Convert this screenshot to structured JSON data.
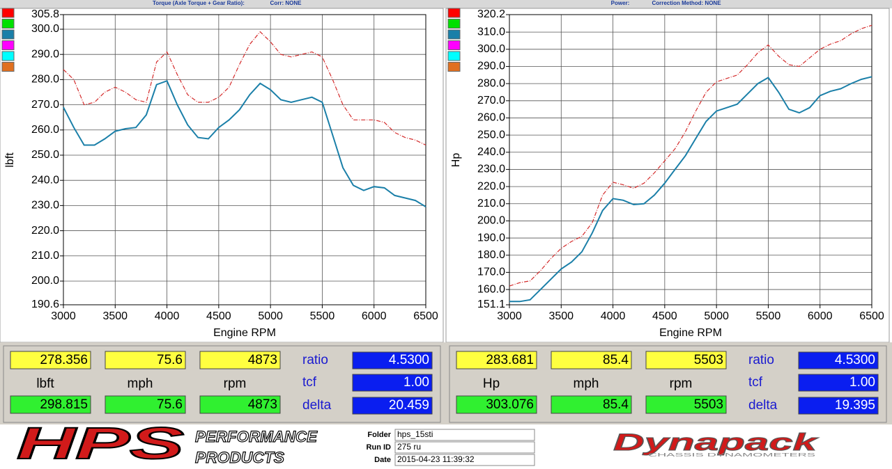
{
  "chart_data": [
    {
      "type": "line",
      "title": "Torque (Axle Torque + Gear Ratio):",
      "subtitle": "Corr: NONE",
      "x_label": "Engine RPM",
      "y_label": "lbft",
      "x": [
        3000,
        3100,
        3200,
        3300,
        3400,
        3500,
        3600,
        3700,
        3800,
        3900,
        4000,
        4100,
        4200,
        4300,
        4400,
        4500,
        4600,
        4700,
        4800,
        4900,
        5000,
        5100,
        5200,
        5300,
        5400,
        5500,
        5600,
        5700,
        5800,
        5900,
        6000,
        6100,
        6200,
        6300,
        6400,
        6500
      ],
      "series": [
        {
          "color": "#1a7fa8",
          "line_style": "solid",
          "values": [
            269,
            261,
            254,
            254,
            256.5,
            259.5,
            260.5,
            261,
            266,
            278,
            279.5,
            270,
            262,
            257,
            256.5,
            261,
            264,
            268,
            274,
            278.5,
            276,
            272,
            271,
            272,
            273,
            271,
            258,
            245,
            238,
            236,
            237.5,
            237,
            234,
            233,
            232,
            229.5
          ]
        },
        {
          "color": "#d42a2a",
          "line_style": "dashdot",
          "values": [
            284,
            280,
            270,
            271,
            275,
            277,
            275,
            272,
            271,
            287,
            291,
            282,
            274,
            271,
            271,
            273,
            277,
            286,
            294,
            299,
            295,
            290,
            289,
            290,
            291,
            289,
            280,
            270,
            264,
            264,
            264,
            263,
            259,
            257,
            256,
            254
          ]
        }
      ],
      "xlim": [
        3000,
        6500
      ],
      "xticks": [
        3000,
        3500,
        4000,
        4500,
        5000,
        5500,
        6000,
        6500
      ],
      "ylim": [
        190.6,
        305.8
      ],
      "yticks": [
        190.6,
        {
          "value": 200,
          "label": "200.0"
        },
        {
          "value": 210,
          "label": "210.0"
        },
        {
          "value": 220,
          "label": "220.0"
        },
        {
          "value": 230,
          "label": "230.0"
        },
        {
          "value": 240,
          "label": "240.0"
        },
        {
          "value": 250,
          "label": "250.0"
        },
        {
          "value": 260,
          "label": "260.0"
        },
        {
          "value": 270,
          "label": "270.0"
        },
        {
          "value": 280,
          "label": "280.0"
        },
        {
          "value": 290,
          "label": "290.0"
        },
        {
          "value": 300,
          "label": "300.0"
        },
        305.8
      ],
      "grid": true
    },
    {
      "type": "line",
      "title": "Power:",
      "subtitle": "Correction Method: NONE",
      "x_label": "Engine RPM",
      "y_label": "Hp",
      "x": [
        3000,
        3100,
        3200,
        3300,
        3400,
        3500,
        3600,
        3700,
        3800,
        3900,
        4000,
        4100,
        4200,
        4300,
        4400,
        4500,
        4600,
        4700,
        4800,
        4900,
        5000,
        5100,
        5200,
        5300,
        5400,
        5500,
        5600,
        5700,
        5800,
        5900,
        6000,
        6100,
        6200,
        6300,
        6400,
        6500
      ],
      "series": [
        {
          "color": "#1a7fa8",
          "line_style": "solid",
          "values": [
            153,
            153,
            154,
            160,
            166,
            172,
            176,
            182,
            193,
            206,
            213,
            212,
            209.5,
            210,
            215,
            222,
            230,
            238,
            248,
            258,
            264,
            266,
            268,
            274,
            280,
            283.5,
            275,
            265,
            263,
            266,
            273,
            275.5,
            277,
            280,
            282.5,
            284
          ]
        },
        {
          "color": "#d42a2a",
          "line_style": "dashdot",
          "values": [
            162,
            164,
            165,
            171,
            178,
            184,
            188,
            191,
            199,
            215,
            222.5,
            221,
            219,
            222,
            228,
            235,
            242,
            252,
            264,
            275,
            281,
            283,
            285,
            291,
            298,
            302.5,
            296,
            291,
            290,
            295,
            300,
            303,
            305,
            309,
            312,
            314
          ]
        }
      ],
      "xlim": [
        3000,
        6500
      ],
      "xticks": [
        3000,
        3500,
        4000,
        4500,
        5000,
        5500,
        6000,
        6500
      ],
      "ylim": [
        151.1,
        320.2
      ],
      "yticks": [
        151.1,
        {
          "value": 160,
          "label": "160.0"
        },
        {
          "value": 170,
          "label": "170.0"
        },
        {
          "value": 180,
          "label": "180.0"
        },
        {
          "value": 190,
          "label": "190.0"
        },
        {
          "value": 200,
          "label": "200.0"
        },
        {
          "value": 210,
          "label": "210.0"
        },
        {
          "value": 220,
          "label": "220.0"
        },
        {
          "value": 230,
          "label": "230.0"
        },
        {
          "value": 240,
          "label": "240.0"
        },
        {
          "value": 250,
          "label": "250.0"
        },
        {
          "value": 260,
          "label": "260.0"
        },
        {
          "value": 270,
          "label": "270.0"
        },
        {
          "value": 280,
          "label": "280.0"
        },
        {
          "value": 290,
          "label": "290.0"
        },
        {
          "value": 300,
          "label": "300.0"
        },
        {
          "value": 310,
          "label": "310.0"
        },
        320.2
      ],
      "grid": true
    }
  ],
  "readouts": [
    {
      "cursor": [
        "278.356",
        "75.6",
        "4873"
      ],
      "units": [
        "lbft",
        "mph",
        "rpm"
      ],
      "compare": [
        "298.815",
        "75.6",
        "4873"
      ],
      "params": [
        {
          "label": "ratio",
          "value": "4.5300"
        },
        {
          "label": "tcf",
          "value": "1.00"
        },
        {
          "label": "delta",
          "value": "20.459"
        }
      ]
    },
    {
      "cursor": [
        "283.681",
        "85.4",
        "5503"
      ],
      "units": [
        "Hp",
        "mph",
        "rpm"
      ],
      "compare": [
        "303.076",
        "85.4",
        "5503"
      ],
      "params": [
        {
          "label": "ratio",
          "value": "4.5300"
        },
        {
          "label": "tcf",
          "value": "1.00"
        },
        {
          "label": "delta",
          "value": "19.395"
        }
      ]
    }
  ],
  "run_info": [
    {
      "label": "Folder",
      "value": "hps_15sti"
    },
    {
      "label": "Run ID",
      "value": "275 ru"
    },
    {
      "label": "Date",
      "value": "2015-04-23 11:39:32"
    }
  ],
  "branding": {
    "hps": "HPS",
    "hps_line1": "PERFORMANCE",
    "hps_line2": "PRODUCTS",
    "dynapack": "Dynapack",
    "dynapack_sub": "CHASSIS DYNAMOMETERS"
  }
}
